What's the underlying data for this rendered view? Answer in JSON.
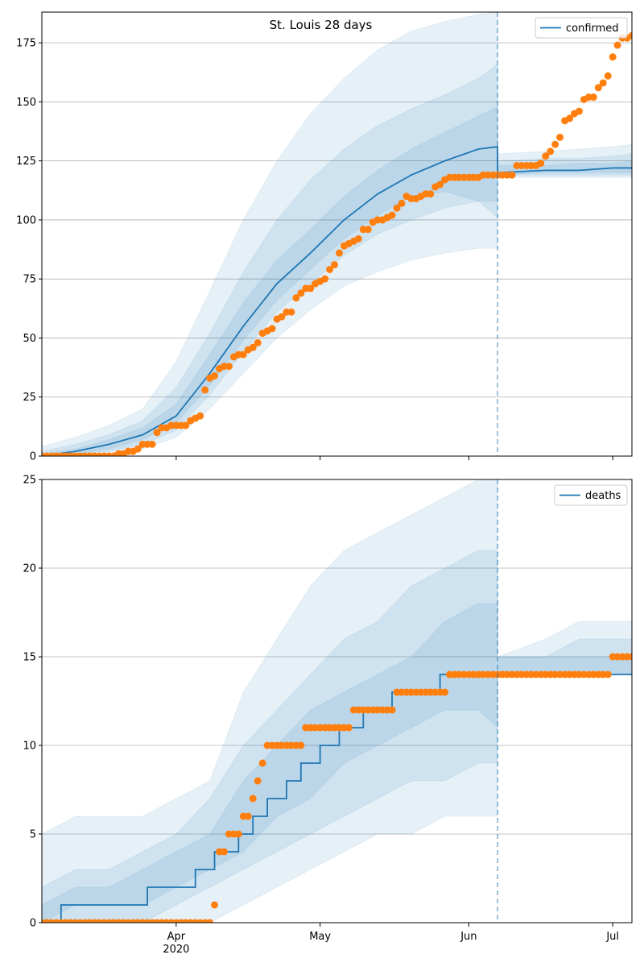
{
  "chart_data": [
    {
      "type": "line",
      "title": "St. Louis 28 days",
      "xlim": [
        0,
        123
      ],
      "xticks": [
        28,
        58,
        89,
        119
      ],
      "ylim": [
        0,
        188
      ],
      "yticks": [
        0,
        25,
        50,
        75,
        100,
        125,
        150,
        175
      ],
      "grid": true,
      "legend": "upper right",
      "forecast_start": 95,
      "series": [
        {
          "name": "confirmed",
          "color": "#1f77b4",
          "x": [
            0,
            7,
            14,
            21,
            28,
            35,
            42,
            49,
            56,
            63,
            70,
            77,
            84,
            91,
            95,
            95,
            105,
            112,
            119,
            123
          ],
          "values": [
            0,
            2,
            5,
            9,
            17,
            35,
            55,
            73,
            86,
            100,
            111,
            119,
            125,
            130,
            131,
            120,
            121,
            121,
            122,
            122
          ]
        }
      ],
      "bands": {
        "color": "#1f77b4",
        "x": [
          0,
          7,
          14,
          21,
          28,
          35,
          42,
          49,
          56,
          63,
          70,
          77,
          84,
          91,
          95,
          95,
          105,
          112,
          119,
          123
        ],
        "ranges": [
          {
            "lower": [
              0,
              0,
              1,
              3,
              8,
              20,
              35,
              50,
              62,
              72,
              78,
              83,
              86,
              88,
              88,
              118,
              118,
              118,
              118,
              118
            ],
            "upper": [
              4,
              8,
              13,
              20,
              40,
              70,
              100,
              125,
              145,
              160,
              172,
              180,
              184,
              187,
              188,
              128,
              129,
              130,
              131,
              132
            ]
          },
          {
            "lower": [
              0,
              1,
              2,
              5,
              11,
              26,
              44,
              61,
              73,
              85,
              94,
              100,
              105,
              108,
              108,
              119,
              119,
              119,
              119,
              119
            ],
            "upper": [
              2,
              5,
              9,
              15,
              29,
              52,
              78,
              100,
              117,
              130,
              140,
              147,
              153,
              160,
              166,
              125,
              126,
              126,
              127,
              128
            ]
          },
          {
            "lower": [
              0,
              1,
              3,
              7,
              14,
              30,
              49,
              66,
              79,
              92,
              102,
              110,
              112,
              108,
              101,
              119,
              120,
              120,
              120,
              120
            ],
            "upper": [
              1,
              3,
              7,
              12,
              22,
              43,
              65,
              83,
              96,
              110,
              121,
              130,
              137,
              144,
              148,
              123,
              123,
              124,
              124,
              125
            ]
          }
        ]
      },
      "observed": {
        "color": "#ff7f0e",
        "x": [
          0,
          1,
          2,
          3,
          4,
          5,
          6,
          7,
          8,
          9,
          10,
          11,
          12,
          13,
          14,
          15,
          16,
          17,
          18,
          19,
          20,
          21,
          22,
          23,
          24,
          25,
          26,
          27,
          28,
          29,
          30,
          31,
          32,
          33,
          34,
          35,
          36,
          37,
          38,
          39,
          40,
          41,
          42,
          43,
          44,
          45,
          46,
          47,
          48,
          49,
          50,
          51,
          52,
          53,
          54,
          55,
          56,
          57,
          58,
          59,
          60,
          61,
          62,
          63,
          64,
          65,
          66,
          67,
          68,
          69,
          70,
          71,
          72,
          73,
          74,
          75,
          76,
          77,
          78,
          79,
          80,
          81,
          82,
          83,
          84,
          85,
          86,
          87,
          88,
          89,
          90,
          91,
          92,
          93,
          94,
          95,
          96,
          97,
          98,
          99,
          100,
          101,
          102,
          103,
          104,
          105,
          106,
          107,
          108,
          109,
          110,
          111,
          112,
          113,
          114,
          115,
          116,
          117,
          118,
          119,
          120,
          121,
          122,
          123
        ],
        "values": [
          0,
          0,
          0,
          0,
          0,
          0,
          0,
          0,
          0,
          0,
          0,
          0,
          0,
          0,
          0,
          0,
          1,
          1,
          2,
          2,
          3,
          5,
          5,
          5,
          10,
          12,
          12,
          13,
          13,
          13,
          13,
          15,
          16,
          17,
          28,
          33,
          34,
          37,
          38,
          38,
          42,
          43,
          43,
          45,
          46,
          48,
          52,
          53,
          54,
          58,
          59,
          61,
          61,
          67,
          69,
          71,
          71,
          73,
          74,
          75,
          79,
          81,
          86,
          89,
          90,
          91,
          92,
          96,
          96,
          99,
          100,
          100,
          101,
          102,
          105,
          107,
          110,
          109,
          109,
          110,
          111,
          111,
          114,
          115,
          117,
          118,
          118,
          118,
          118,
          118,
          118,
          118,
          119,
          119,
          119,
          119,
          119,
          119,
          119,
          123,
          123,
          123,
          123,
          123,
          124,
          127,
          129,
          132,
          135,
          142,
          143,
          145,
          146,
          151,
          152,
          152,
          156,
          158,
          161,
          169,
          174,
          177,
          177,
          178
        ]
      }
    },
    {
      "type": "line",
      "xlim": [
        0,
        123
      ],
      "xticks": [
        {
          "value": 28,
          "label": "Apr"
        },
        {
          "value": 58,
          "label": "May"
        },
        {
          "value": 89,
          "label": "Jun"
        },
        {
          "value": 119,
          "label": "Jul"
        }
      ],
      "x_year": "2020",
      "ylim": [
        0,
        25
      ],
      "yticks": [
        0,
        5,
        10,
        15,
        20,
        25
      ],
      "grid": true,
      "legend": "upper right",
      "forecast_start": 95,
      "series": [
        {
          "name": "deaths",
          "color": "#1f77b4",
          "step": "post",
          "x": [
            0,
            4,
            22,
            32,
            36,
            41,
            44,
            47,
            51,
            54,
            58,
            62,
            67,
            73,
            83,
            123
          ],
          "values": [
            0,
            1,
            2,
            3,
            4,
            5,
            6,
            7,
            8,
            9,
            10,
            11,
            12,
            13,
            14,
            14
          ]
        }
      ],
      "bands": {
        "color": "#1f77b4",
        "x": [
          0,
          7,
          14,
          21,
          28,
          35,
          42,
          49,
          56,
          63,
          70,
          77,
          84,
          91,
          95,
          95,
          105,
          112,
          119,
          123
        ],
        "ranges": [
          {
            "lower": [
              0,
              0,
              0,
              0,
              0,
              0,
              1,
              2,
              3,
              4,
              5,
              5,
              6,
              6,
              6,
              14,
              14,
              14,
              14,
              14
            ],
            "upper": [
              5,
              6,
              6,
              6,
              7,
              8,
              13,
              16,
              19,
              21,
              22,
              23,
              24,
              25,
              25,
              15,
              16,
              17,
              17,
              17
            ]
          },
          {
            "lower": [
              0,
              0,
              0,
              0,
              1,
              2,
              3,
              4,
              5,
              6,
              7,
              8,
              8,
              9,
              9,
              14,
              14,
              14,
              14,
              14
            ],
            "upper": [
              2,
              3,
              3,
              4,
              5,
              7,
              10,
              12,
              14,
              16,
              17,
              19,
              20,
              21,
              21,
              15,
              15,
              16,
              16,
              16
            ]
          },
          {
            "lower": [
              0,
              1,
              1,
              1,
              2,
              3,
              4,
              6,
              7,
              9,
              10,
              11,
              12,
              12,
              11,
              14,
              14,
              14,
              14,
              14
            ],
            "upper": [
              1,
              2,
              2,
              3,
              4,
              5,
              8,
              10,
              12,
              13,
              14,
              15,
              17,
              18,
              18,
              15,
              15,
              15,
              15,
              15
            ]
          }
        ]
      },
      "observed": {
        "color": "#ff7f0e",
        "x": [
          0,
          1,
          2,
          3,
          4,
          5,
          6,
          7,
          8,
          9,
          10,
          11,
          12,
          13,
          14,
          15,
          16,
          17,
          18,
          19,
          20,
          21,
          22,
          23,
          24,
          25,
          26,
          27,
          28,
          29,
          30,
          31,
          32,
          33,
          34,
          35,
          36,
          37,
          38,
          39,
          40,
          41,
          42,
          43,
          44,
          45,
          46,
          47,
          48,
          49,
          50,
          51,
          52,
          53,
          54,
          55,
          56,
          57,
          58,
          59,
          60,
          61,
          62,
          63,
          64,
          65,
          66,
          67,
          68,
          69,
          70,
          71,
          72,
          73,
          74,
          75,
          76,
          77,
          78,
          79,
          80,
          81,
          82,
          83,
          84,
          85,
          86,
          87,
          88,
          89,
          90,
          91,
          92,
          93,
          94,
          95,
          96,
          97,
          98,
          99,
          100,
          101,
          102,
          103,
          104,
          105,
          106,
          107,
          108,
          109,
          110,
          111,
          112,
          113,
          114,
          115,
          116,
          117,
          118,
          119,
          120,
          121,
          122,
          123
        ],
        "values": [
          0,
          0,
          0,
          0,
          0,
          0,
          0,
          0,
          0,
          0,
          0,
          0,
          0,
          0,
          0,
          0,
          0,
          0,
          0,
          0,
          0,
          0,
          0,
          0,
          0,
          0,
          0,
          0,
          0,
          0,
          0,
          0,
          0,
          0,
          0,
          0,
          1,
          4,
          4,
          5,
          5,
          5,
          6,
          6,
          7,
          8,
          9,
          10,
          10,
          10,
          10,
          10,
          10,
          10,
          10,
          11,
          11,
          11,
          11,
          11,
          11,
          11,
          11,
          11,
          11,
          12,
          12,
          12,
          12,
          12,
          12,
          12,
          12,
          12,
          13,
          13,
          13,
          13,
          13,
          13,
          13,
          13,
          13,
          13,
          13,
          14,
          14,
          14,
          14,
          14,
          14,
          14,
          14,
          14,
          14,
          14,
          14,
          14,
          14,
          14,
          14,
          14,
          14,
          14,
          14,
          14,
          14,
          14,
          14,
          14,
          14,
          14,
          14,
          14,
          14,
          14,
          14,
          14,
          14,
          15,
          15,
          15,
          15,
          15
        ]
      }
    }
  ]
}
